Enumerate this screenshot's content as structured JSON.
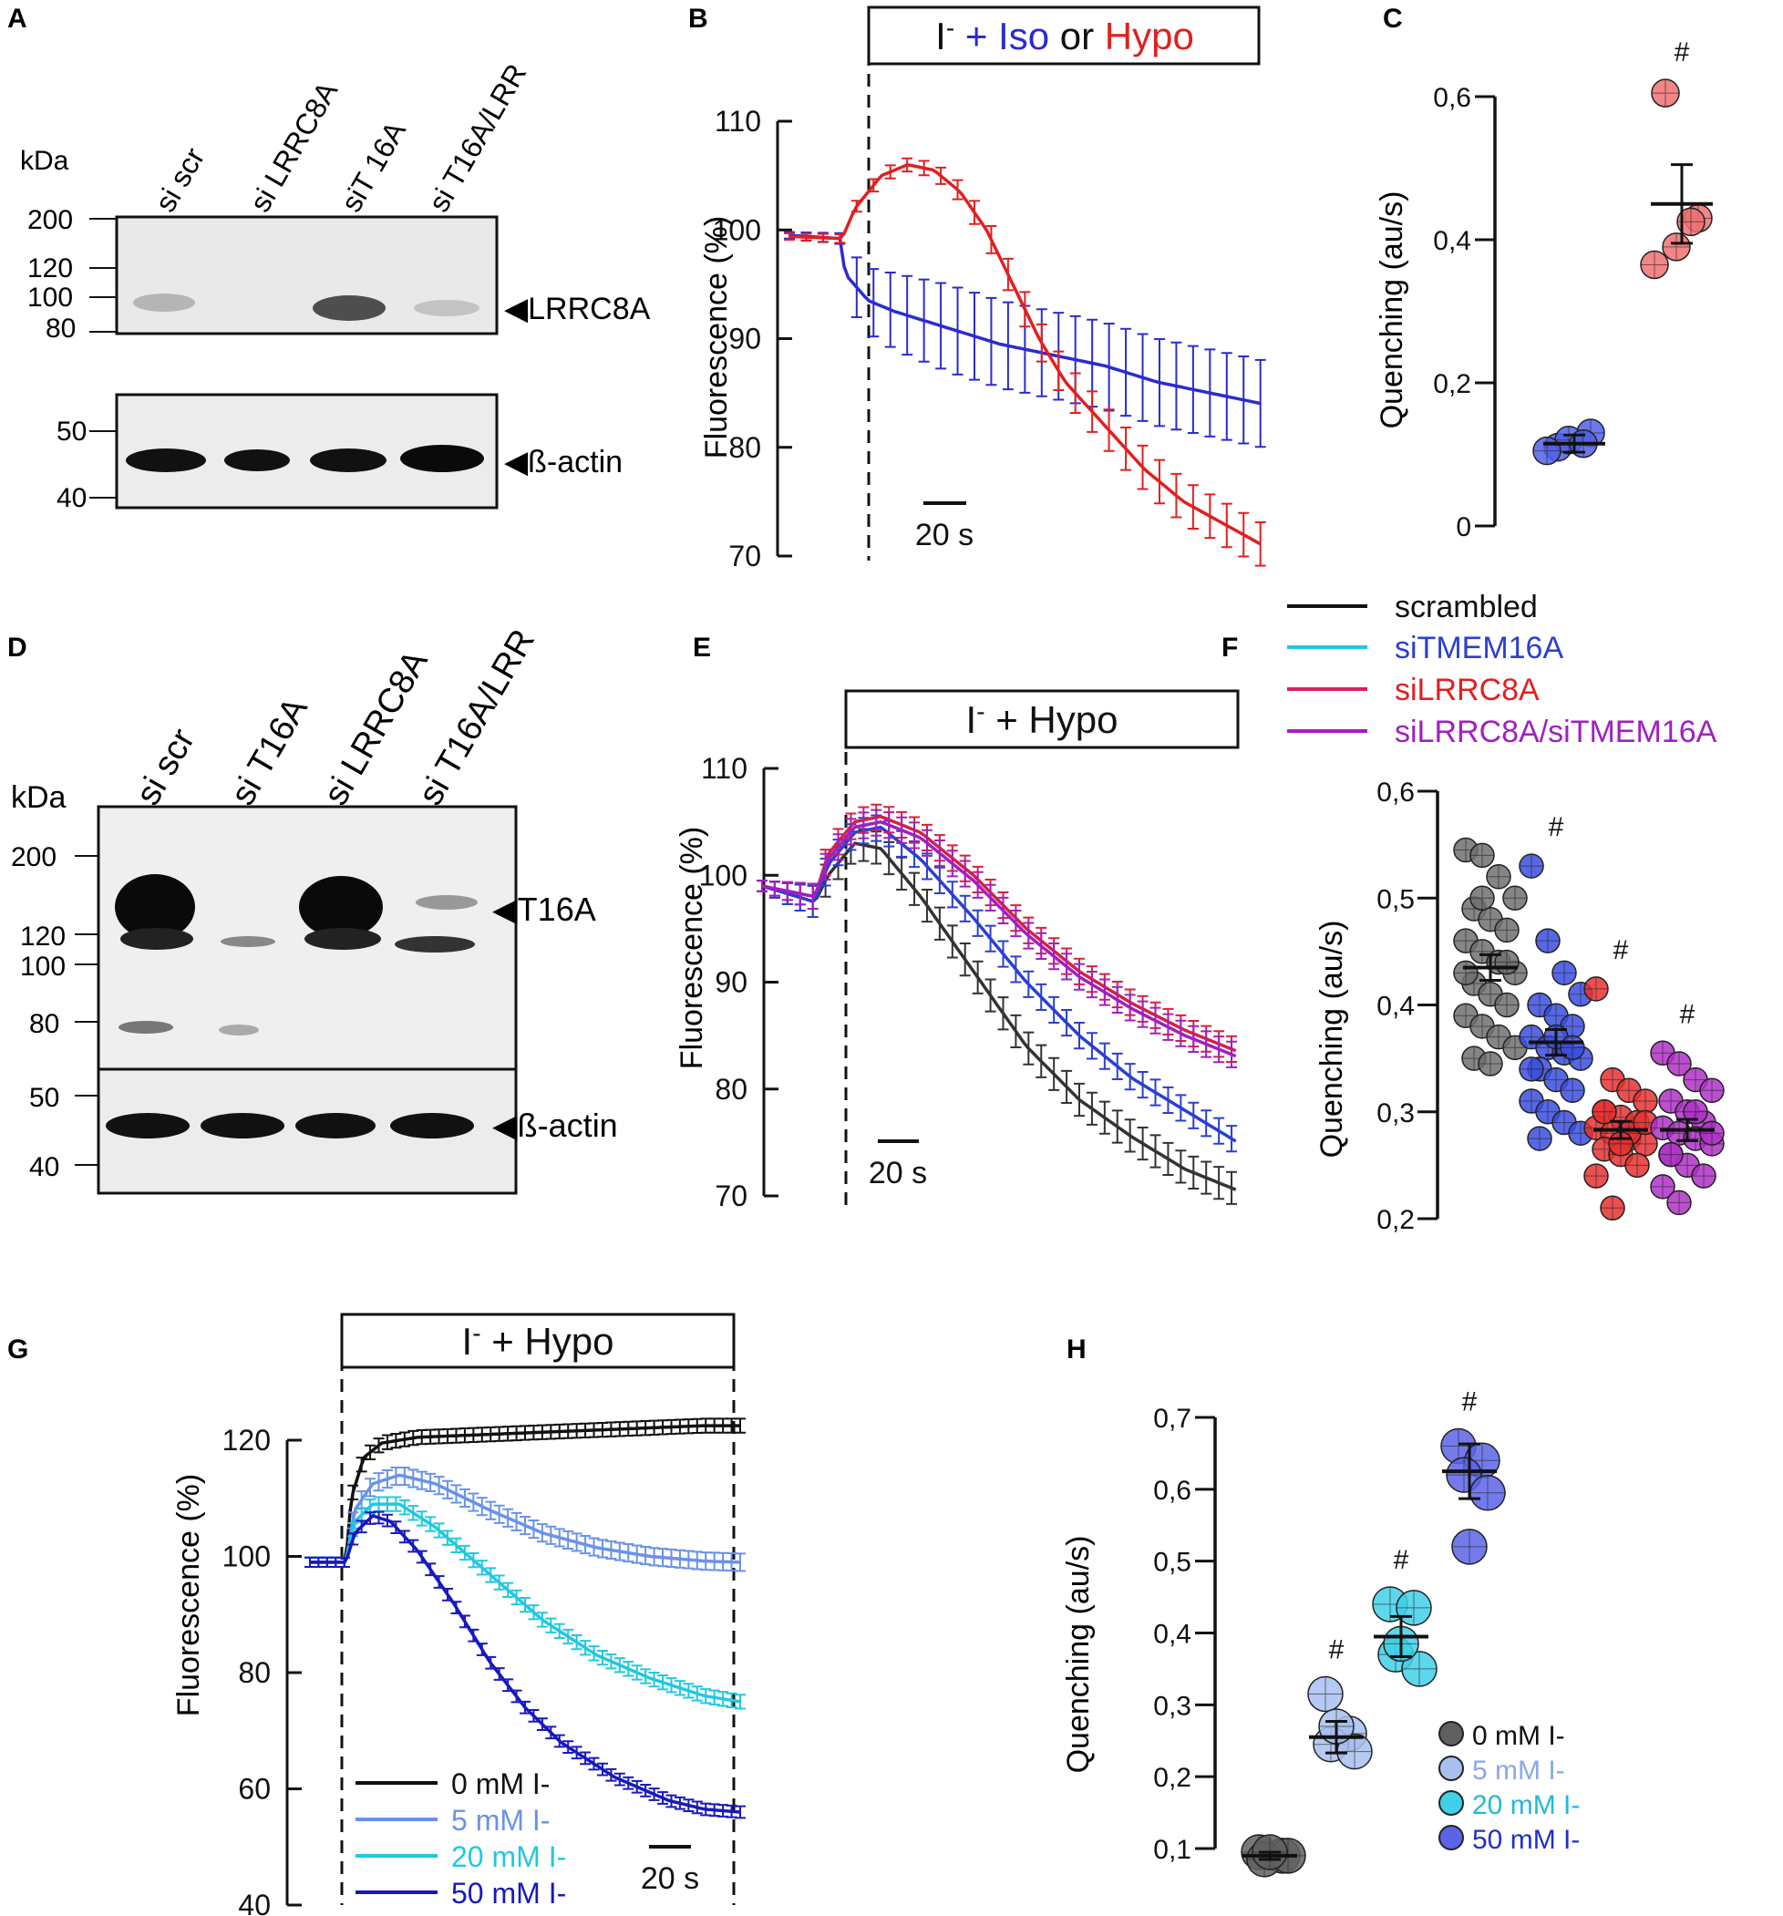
{
  "figure": {
    "panels": {
      "A": "A",
      "B": "B",
      "C": "C",
      "D": "D",
      "E": "E",
      "F": "F",
      "G": "G",
      "H": "H"
    },
    "legend_EF": [
      "scrambled",
      "siTMEM16A",
      "siLRRC8A",
      "siLRRC8A/siTMEM16A"
    ]
  },
  "blots": {
    "A": {
      "unit": "kDa",
      "lanes": [
        "si scr",
        "si LRRC8A",
        "siT 16A",
        "si T16A/LRR"
      ],
      "markers_top": [
        "200",
        "120",
        "100",
        "80"
      ],
      "markers_bottom": [
        "50",
        "40"
      ],
      "label_top": "◀LRRC8A",
      "label_bottom": "◀ß-actin",
      "band_intensity": [
        0.35,
        0.0,
        0.85,
        0.25
      ]
    },
    "D": {
      "unit": "kDa",
      "lanes": [
        "si scr",
        "si T16A",
        "si LRRC8A",
        "si T16A/LRR"
      ],
      "markers_top": [
        "200",
        "120",
        "100",
        "80"
      ],
      "markers_bottom": [
        "50",
        "40"
      ],
      "label_top": "◀T16A",
      "label_bottom": "◀ß-actin"
    }
  },
  "chart_data": [
    {
      "panel": "B",
      "type": "line",
      "ylabel": "Fluorescence (%)",
      "yticks": [
        "110",
        "100",
        "90",
        "80",
        "70"
      ],
      "ylim": [
        70,
        110
      ],
      "xlim_s": [
        -20,
        160
      ],
      "scalebar": "20 s",
      "stimulus_parts": [
        "I",
        "-",
        " + ",
        "Iso",
        " or ",
        "Hypo"
      ],
      "series": [
        {
          "name": "Iso",
          "color": "#2b2bd0",
          "t": [
            -20,
            0,
            1,
            10,
            20,
            40,
            60,
            80,
            100,
            120,
            140,
            160
          ],
          "y": [
            99.5,
            99.2,
            96,
            93.5,
            92.5,
            91,
            89.5,
            88.5,
            87.5,
            86,
            85,
            84
          ],
          "sem": [
            0.3,
            0.5,
            2.5,
            3,
            3.5,
            4,
            4,
            4,
            4,
            4,
            4,
            4
          ]
        },
        {
          "name": "Hypo",
          "color": "#e02020",
          "t": [
            -20,
            0,
            5,
            15,
            25,
            35,
            45,
            55,
            65,
            75,
            85,
            100,
            115,
            130,
            145,
            160
          ],
          "y": [
            99.4,
            99.2,
            102,
            105,
            106,
            105.5,
            103.5,
            100,
            95,
            90,
            86,
            82,
            78,
            75,
            73,
            71
          ],
          "sem": [
            0.3,
            0.4,
            0.5,
            0.6,
            0.6,
            0.7,
            0.9,
            1.2,
            1.5,
            1.7,
            1.8,
            1.9,
            2,
            2,
            2,
            2
          ]
        }
      ]
    },
    {
      "panel": "C",
      "type": "scatter",
      "ylabel": "Quenching (au/s)",
      "yticks": [
        "0",
        "0,2",
        "0,4",
        "0,6"
      ],
      "ylim": [
        0,
        0.6
      ],
      "groups": [
        {
          "name": "Iso",
          "color": "#5060e8",
          "mean": 0.115,
          "sem": 0.012,
          "points": [
            0.11,
            0.13,
            0.12,
            0.105,
            0.115
          ],
          "mark": ""
        },
        {
          "name": "Hypo",
          "color": "#f07070",
          "mean": 0.45,
          "sem": 0.055,
          "points": [
            0.605,
            0.43,
            0.39,
            0.365,
            0.425
          ],
          "mark": "#"
        }
      ]
    },
    {
      "panel": "E",
      "type": "line",
      "ylabel": "Fluorescence (%)",
      "yticks": [
        "110",
        "100",
        "90",
        "80",
        "70"
      ],
      "ylim": [
        70,
        110
      ],
      "xlim_s": [
        -20,
        160
      ],
      "scalebar": "20 s",
      "stimulus_parts": [
        "I",
        "-",
        " + Hypo"
      ],
      "series": [
        {
          "name": "scrambled",
          "color": "#333333",
          "t": [
            -20,
            0,
            5,
            15,
            25,
            40,
            60,
            80,
            100,
            120,
            140,
            160
          ],
          "y": [
            99,
            97.5,
            100,
            103,
            102.5,
            98,
            91,
            84,
            79,
            75.5,
            72.5,
            70.5
          ],
          "sem": [
            0.5,
            1.5,
            1.5,
            1.5,
            1.5,
            1.5,
            1.5,
            1.5,
            1.5,
            1.5,
            1.5,
            1.5
          ]
        },
        {
          "name": "siTMEM16A",
          "color": "#2b3fd0",
          "t": [
            -20,
            0,
            5,
            15,
            25,
            40,
            60,
            80,
            100,
            120,
            140,
            160
          ],
          "y": [
            99,
            97.5,
            101,
            104,
            104.5,
            101.5,
            96,
            90,
            85,
            81,
            78,
            75
          ],
          "sem": [
            0.5,
            1.5,
            1.2,
            1.2,
            1.2,
            1.2,
            1.2,
            1.2,
            1.2,
            1.2,
            1.2,
            1.2
          ]
        },
        {
          "name": "siLRRC8A",
          "color": "#d82040",
          "t": [
            -20,
            0,
            5,
            15,
            25,
            40,
            60,
            80,
            100,
            120,
            140,
            160
          ],
          "y": [
            99,
            98,
            102,
            105,
            105.5,
            104,
            100,
            95,
            91,
            88,
            85.5,
            83.5
          ],
          "sem": [
            0.5,
            1.2,
            1.2,
            1.2,
            1.2,
            1.2,
            1.2,
            1.2,
            1.2,
            1.2,
            1.2,
            1.2
          ]
        },
        {
          "name": "siLRRC8A/siTMEM16A",
          "color": "#a020c0",
          "t": [
            -20,
            0,
            5,
            15,
            25,
            40,
            60,
            80,
            100,
            120,
            140,
            160
          ],
          "y": [
            99,
            98,
            101.5,
            104.5,
            105,
            103.5,
            99.5,
            94.5,
            90.5,
            87.5,
            85,
            83
          ],
          "sem": [
            0.5,
            1.2,
            1.2,
            1.2,
            1.2,
            1.2,
            1.2,
            1.2,
            1.2,
            1.2,
            1.2,
            1.2
          ]
        }
      ]
    },
    {
      "panel": "F",
      "type": "scatter",
      "ylabel": "Quenching (au/s)",
      "yticks": [
        "0,2",
        "0,3",
        "0,4",
        "0,5",
        "0,6"
      ],
      "ylim": [
        0.2,
        0.6
      ],
      "groups": [
        {
          "name": "scrambled",
          "color": "#707070",
          "mean": 0.435,
          "sem": 0.012,
          "mark": "",
          "points": [
            0.545,
            0.54,
            0.52,
            0.5,
            0.49,
            0.48,
            0.47,
            0.46,
            0.45,
            0.44,
            0.43,
            0.42,
            0.41,
            0.4,
            0.39,
            0.38,
            0.37,
            0.36,
            0.35,
            0.345,
            0.44,
            0.43,
            0.5
          ]
        },
        {
          "name": "siTMEM16A",
          "color": "#3a4ee0",
          "mean": 0.365,
          "sem": 0.012,
          "mark": "#",
          "points": [
            0.53,
            0.46,
            0.43,
            0.41,
            0.4,
            0.39,
            0.38,
            0.37,
            0.36,
            0.355,
            0.35,
            0.34,
            0.33,
            0.32,
            0.31,
            0.3,
            0.29,
            0.28,
            0.275,
            0.37,
            0.36,
            0.34
          ]
        },
        {
          "name": "siLRRC8A",
          "color": "#e83030",
          "mean": 0.283,
          "sem": 0.008,
          "mark": "#",
          "points": [
            0.415,
            0.33,
            0.32,
            0.31,
            0.3,
            0.295,
            0.29,
            0.285,
            0.28,
            0.275,
            0.27,
            0.265,
            0.26,
            0.25,
            0.24,
            0.21,
            0.28,
            0.29,
            0.3,
            0.27
          ]
        },
        {
          "name": "siLRRC8A/siTMEM16A",
          "color": "#b030c8",
          "mean": 0.283,
          "sem": 0.01,
          "mark": "#",
          "points": [
            0.355,
            0.345,
            0.33,
            0.32,
            0.31,
            0.3,
            0.29,
            0.285,
            0.28,
            0.275,
            0.27,
            0.26,
            0.25,
            0.24,
            0.23,
            0.215,
            0.3,
            0.28,
            0.26
          ]
        }
      ]
    },
    {
      "panel": "G",
      "type": "line",
      "ylabel": "Fluorescence (%)",
      "yticks": [
        "120",
        "100",
        "80",
        "60",
        "40"
      ],
      "ylim": [
        40,
        120
      ],
      "xlim_s": [
        -20,
        220
      ],
      "scalebar": "20 s",
      "stimulus_parts": [
        "I",
        "-",
        " + Hypo"
      ],
      "series": [
        {
          "name": "0 mM I-",
          "color": "#111111",
          "t": [
            -20,
            0,
            3,
            10,
            20,
            40,
            80,
            120,
            160,
            200,
            220
          ],
          "y": [
            99,
            99,
            110,
            117,
            119.5,
            120.5,
            121,
            121.5,
            122,
            122.5,
            122.5
          ],
          "sem": [
            0.8,
            0.8,
            1.2,
            1.2,
            1.2,
            1.2,
            1.2,
            1.2,
            1.2,
            1.2,
            1.2
          ]
        },
        {
          "name": "5 mM I-",
          "color": "#6a92e8",
          "t": [
            -20,
            0,
            5,
            15,
            30,
            50,
            80,
            110,
            140,
            170,
            200,
            220
          ],
          "y": [
            99,
            99,
            108,
            112.5,
            114,
            112.5,
            108,
            104,
            101.5,
            100,
            99.2,
            99
          ],
          "sem": [
            0.8,
            0.8,
            1.5,
            1.5,
            1.5,
            1.5,
            1.5,
            1.5,
            1.5,
            1.5,
            1.5,
            1.5
          ]
        },
        {
          "name": "20 mM I-",
          "color": "#22c8e0",
          "t": [
            -20,
            0,
            5,
            15,
            30,
            50,
            80,
            110,
            140,
            170,
            200,
            220
          ],
          "y": [
            99,
            99,
            106,
            109,
            109,
            105,
            97,
            89,
            83,
            79,
            76,
            75
          ],
          "sem": [
            0.8,
            0.8,
            1.2,
            1.2,
            1.2,
            1.2,
            1.2,
            1.2,
            1.2,
            1.2,
            1.2,
            1.2
          ]
        },
        {
          "name": "50 mM I-",
          "color": "#1818c0",
          "t": [
            -20,
            0,
            5,
            15,
            25,
            40,
            60,
            80,
            100,
            120,
            150,
            180,
            200,
            220
          ],
          "y": [
            99,
            99,
            104,
            107,
            106,
            101,
            92,
            82,
            74,
            68,
            62,
            58,
            56.5,
            56
          ],
          "sem": [
            0.8,
            0.8,
            1,
            1,
            1,
            1,
            1,
            1,
            1,
            1,
            1,
            1,
            1,
            1
          ]
        }
      ],
      "legend": [
        "0 mM I-",
        "5 mM I-",
        "20 mM I-",
        "50 mM I-"
      ]
    },
    {
      "panel": "H",
      "type": "scatter",
      "ylabel": "Quenching (au/s)",
      "yticks": [
        "0,1",
        "0,2",
        "0,3",
        "0,4",
        "0,5",
        "0,6",
        "0,7"
      ],
      "ylim": [
        0.1,
        0.7
      ],
      "groups": [
        {
          "name": "0 mM I-",
          "color": "#606060",
          "mean": 0.09,
          "sem": 0.005,
          "mark": "",
          "points": [
            0.095,
            0.09,
            0.085,
            0.09,
            0.095
          ]
        },
        {
          "name": "5 mM I-",
          "color": "#a8c0f0",
          "mean": 0.255,
          "sem": 0.022,
          "mark": "#",
          "points": [
            0.315,
            0.26,
            0.245,
            0.235,
            0.27
          ]
        },
        {
          "name": "20 mM I-",
          "color": "#40d0e8",
          "mean": 0.395,
          "sem": 0.028,
          "mark": "#",
          "points": [
            0.44,
            0.435,
            0.37,
            0.35,
            0.385
          ]
        },
        {
          "name": "50 mM I-",
          "color": "#5a64e8",
          "mean": 0.625,
          "sem": 0.038,
          "mark": "#",
          "points": [
            0.66,
            0.64,
            0.62,
            0.595,
            0.52
          ]
        }
      ],
      "legend": [
        "0 mM I-",
        "5 mM I-",
        "20 mM I-",
        "50 mM I-"
      ]
    }
  ]
}
